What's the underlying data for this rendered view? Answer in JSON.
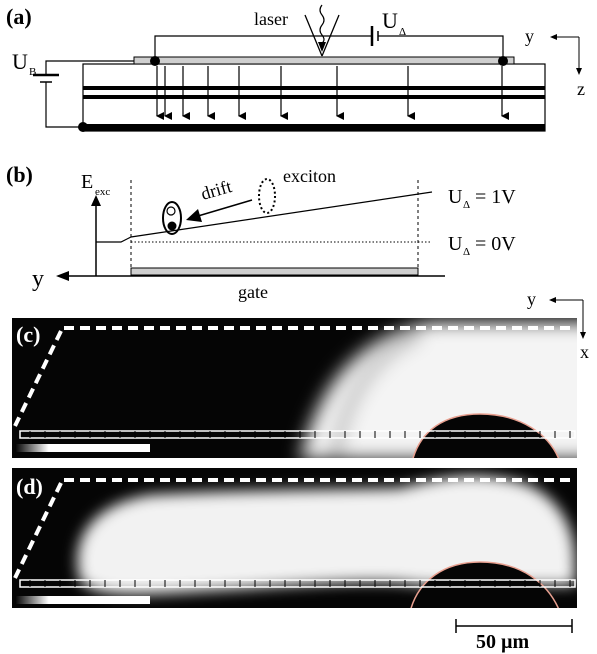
{
  "panel_a": {
    "label": "(a)",
    "laser": "laser",
    "u_delta_main": "U",
    "u_delta_sub": "Δ",
    "u_b_main": "U",
    "u_b_sub": "B",
    "axis_y": "y",
    "axis_z": "z"
  },
  "panel_b": {
    "label": "(b)",
    "e_main": "E",
    "e_sub": "exc",
    "exciton": "exciton",
    "drift": "drift",
    "axis_y": "y",
    "gate": "gate",
    "line1_u": "U",
    "line1_sub": "Δ",
    "line1_value": "= 1V",
    "line0_u": "U",
    "line0_sub": "Δ",
    "line0_value": "= 0V"
  },
  "panel_c": {
    "label": "(c)",
    "axis_y": "y",
    "axis_x": "x"
  },
  "panel_d": {
    "label": "(d)"
  },
  "scale": {
    "label": "50 µm"
  },
  "colors": {
    "image_dark": "#050505",
    "image_bright": "#f4f4f4",
    "edge_tint": "#e8a090"
  }
}
